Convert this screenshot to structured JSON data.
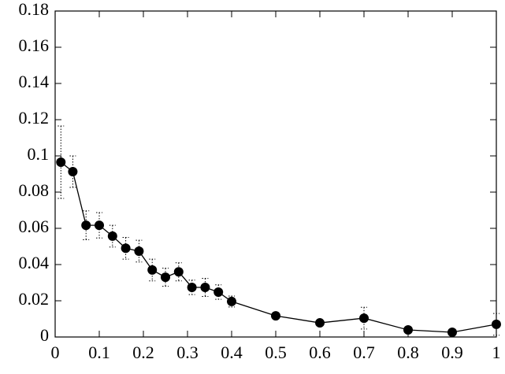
{
  "chart_data": {
    "type": "line",
    "x": [
      0.013,
      0.04,
      0.07,
      0.1,
      0.13,
      0.16,
      0.19,
      0.22,
      0.25,
      0.28,
      0.31,
      0.34,
      0.37,
      0.4,
      0.5,
      0.6,
      0.7,
      0.8,
      0.9,
      1.0
    ],
    "values": [
      0.0965,
      0.0913,
      0.0617,
      0.0617,
      0.0557,
      0.049,
      0.0474,
      0.037,
      0.033,
      0.036,
      0.0274,
      0.0274,
      0.0248,
      0.0196,
      0.0117,
      0.0078,
      0.0104,
      0.0039,
      0.0026,
      0.007
    ],
    "errors": [
      0.02,
      0.0087,
      0.008,
      0.007,
      0.006,
      0.006,
      0.006,
      0.006,
      0.005,
      0.005,
      0.004,
      0.005,
      0.004,
      0.003,
      0.001,
      0.001,
      0.006,
      0.001,
      0.001,
      0.006
    ],
    "color": "#000000",
    "xlim": [
      0,
      1
    ],
    "xticks": [
      0,
      0.1,
      0.2,
      0.3,
      0.4,
      0.5,
      0.6,
      0.7,
      0.8,
      0.9,
      1
    ],
    "ylim": [
      0,
      0.18
    ],
    "yticks": [
      0,
      0.02,
      0.04,
      0.06,
      0.08,
      0.1,
      0.12,
      0.14,
      0.16,
      0.18
    ]
  }
}
